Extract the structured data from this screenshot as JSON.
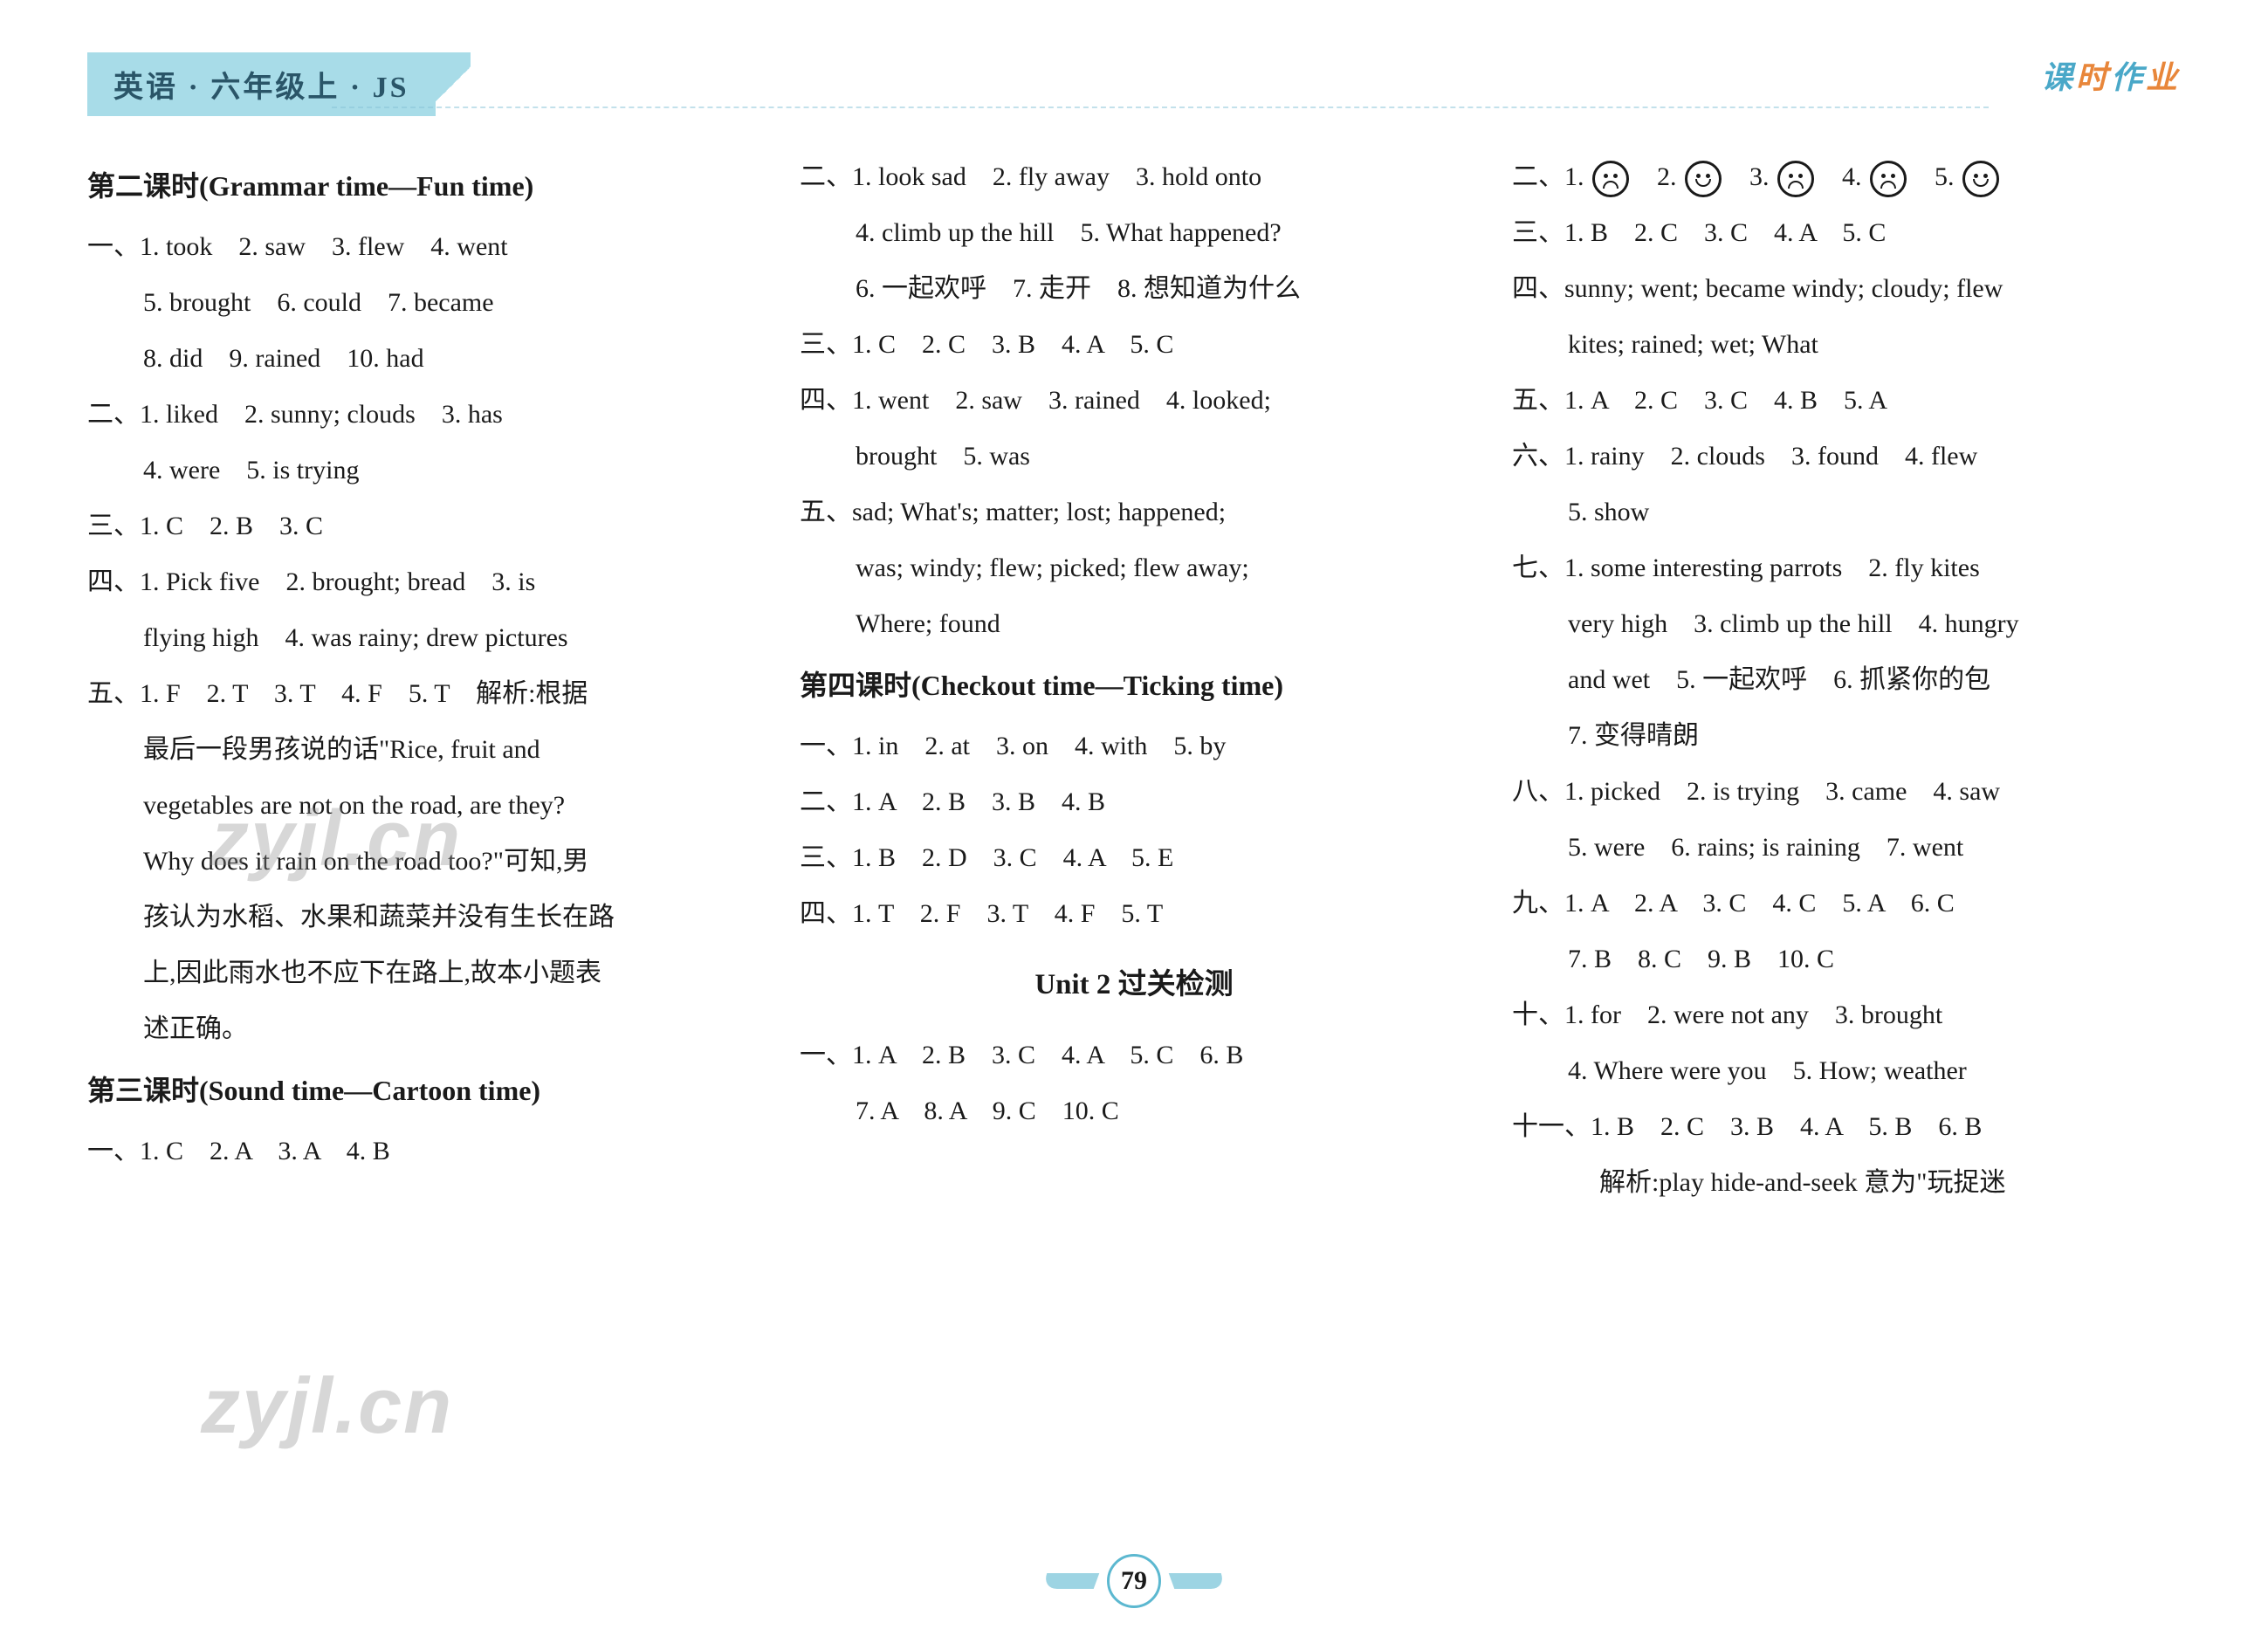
{
  "header": {
    "left": "英语 · 六年级上 · JS",
    "right_chars": [
      "课",
      "时",
      "作",
      "业"
    ]
  },
  "columns": [
    {
      "blocks": [
        {
          "type": "title",
          "text": "第二课时(Grammar time—Fun time)"
        },
        {
          "type": "line",
          "text": "一、1. took　2. saw　3. flew　4. went"
        },
        {
          "type": "line",
          "class": "indent1",
          "text": "5. brought　6. could　7. became"
        },
        {
          "type": "line",
          "class": "indent1",
          "text": "8. did　9. rained　10. had"
        },
        {
          "type": "line",
          "text": "二、1. liked　2. sunny; clouds　3. has"
        },
        {
          "type": "line",
          "class": "indent1",
          "text": "4. were　5. is trying"
        },
        {
          "type": "line",
          "text": "三、1. C　2. B　3. C"
        },
        {
          "type": "line",
          "text": "四、1. Pick five　2. brought; bread　3. is"
        },
        {
          "type": "line",
          "class": "indent1",
          "text": "flying high　4. was rainy; drew pictures"
        },
        {
          "type": "line",
          "text": "五、1. F　2. T　3. T　4. F　5. T　解析:根据"
        },
        {
          "type": "line",
          "class": "indent1",
          "text": "最后一段男孩说的话\"Rice, fruit and"
        },
        {
          "type": "line",
          "class": "indent1",
          "text": "vegetables are not on the road, are they?"
        },
        {
          "type": "line",
          "class": "indent1",
          "text": "Why does it rain on the road too?\"可知,男"
        },
        {
          "type": "line",
          "class": "indent1",
          "text": "孩认为水稻、水果和蔬菜并没有生长在路"
        },
        {
          "type": "line",
          "class": "indent1",
          "text": "上,因此雨水也不应下在路上,故本小题表"
        },
        {
          "type": "line",
          "class": "indent1",
          "text": "述正确。"
        },
        {
          "type": "title",
          "text": "第三课时(Sound time—Cartoon time)"
        },
        {
          "type": "line",
          "text": "一、1. C　2. A　3. A　4. B"
        }
      ]
    },
    {
      "blocks": [
        {
          "type": "line",
          "text": "二、1. look sad　2. fly away　3. hold onto"
        },
        {
          "type": "line",
          "class": "indent1",
          "text": "4. climb up the hill　5. What happened?"
        },
        {
          "type": "line",
          "class": "indent1",
          "text": "6. 一起欢呼　7. 走开　8. 想知道为什么"
        },
        {
          "type": "line",
          "text": "三、1. C　2. C　3. B　4. A　5. C"
        },
        {
          "type": "line",
          "text": "四、1. went　2. saw　3. rained　4. looked;"
        },
        {
          "type": "line",
          "class": "indent1",
          "text": "brought　5. was"
        },
        {
          "type": "line",
          "text": "五、sad; What's; matter; lost; happened;"
        },
        {
          "type": "line",
          "class": "indent1",
          "text": "was; windy; flew; picked; flew away;"
        },
        {
          "type": "line",
          "class": "indent1",
          "text": "Where; found"
        },
        {
          "type": "title",
          "text": "第四课时(Checkout time—Ticking time)"
        },
        {
          "type": "line",
          "text": "一、1. in　2. at　3. on　4. with　5. by"
        },
        {
          "type": "line",
          "text": "二、1. A　2. B　3. B　4. B"
        },
        {
          "type": "line",
          "text": "三、1. B　2. D　3. C　4. A　5. E"
        },
        {
          "type": "line",
          "text": "四、1. T　2. F　3. T　4. F　5. T"
        },
        {
          "type": "unit-title",
          "text": "Unit 2 过关检测"
        },
        {
          "type": "line",
          "text": "一、1. A　2. B　3. C　4. A　5. C　6. B"
        },
        {
          "type": "line",
          "class": "indent1",
          "text": "7. A　8. A　9. C　10. C"
        }
      ]
    },
    {
      "blocks": [
        {
          "type": "faces",
          "items": [
            {
              "n": "1.",
              "mood": "sad"
            },
            {
              "n": "2.",
              "mood": "happy"
            },
            {
              "n": "3.",
              "mood": "sad"
            },
            {
              "n": "4.",
              "mood": "sad"
            },
            {
              "n": "5.",
              "mood": "happy"
            }
          ],
          "prefix": "二、"
        },
        {
          "type": "line",
          "text": "三、1. B　2. C　3. C　4. A　5. C"
        },
        {
          "type": "line",
          "text": "四、sunny; went; became windy; cloudy; flew"
        },
        {
          "type": "line",
          "class": "indent1",
          "text": "kites; rained; wet; What"
        },
        {
          "type": "line",
          "text": "五、1. A　2. C　3. C　4. B　5. A"
        },
        {
          "type": "line",
          "text": "六、1. rainy　2. clouds　3. found　4. flew"
        },
        {
          "type": "line",
          "class": "indent1",
          "text": "5. show"
        },
        {
          "type": "line",
          "text": "七、1. some interesting parrots　2. fly kites"
        },
        {
          "type": "line",
          "class": "indent1",
          "text": "very high　3. climb up the hill　4. hungry"
        },
        {
          "type": "line",
          "class": "indent1",
          "text": "and wet　5. 一起欢呼　6. 抓紧你的包"
        },
        {
          "type": "line",
          "class": "indent1",
          "text": "7. 变得晴朗"
        },
        {
          "type": "line",
          "text": "八、1. picked　2. is trying　3. came　4. saw"
        },
        {
          "type": "line",
          "class": "indent1",
          "text": "5. were　6. rains; is raining　7. went"
        },
        {
          "type": "line",
          "text": "九、1. A　2. A　3. C　4. C　5. A　6. C"
        },
        {
          "type": "line",
          "class": "indent1",
          "text": "7. B　8. C　9. B　10. C"
        },
        {
          "type": "line",
          "text": "十、1. for　2. were not any　3. brought"
        },
        {
          "type": "line",
          "class": "indent1",
          "text": "4. Where were you　5. How; weather"
        },
        {
          "type": "line",
          "text": "十一、1. B　2. C　3. B　4. A　5. B　6. B"
        },
        {
          "type": "line",
          "class": "indent3",
          "text": "解析:play hide-and-seek 意为\"玩捉迷"
        }
      ]
    }
  ],
  "page_number": "79",
  "watermark": "zyjl.cn"
}
